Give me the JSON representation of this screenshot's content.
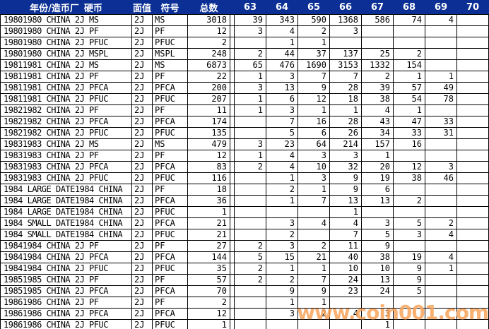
{
  "table": {
    "headers": {
      "year_mint": "年份/造币厂",
      "coin": "硬币",
      "face_value": "面值",
      "symbol": "符号",
      "total": "总数",
      "grades": [
        "63",
        "64",
        "65",
        "66",
        "67",
        "68",
        "69",
        "70"
      ]
    },
    "rows": [
      {
        "coin": "19801980 CHINA 2J MS",
        "face_value": "2J",
        "symbol": "MS",
        "total": "3018",
        "grades": [
          "39",
          "343",
          "590",
          "1368",
          "586",
          "74",
          "4",
          ""
        ]
      },
      {
        "coin": "19801980 CHINA 2J PF",
        "face_value": "2J",
        "symbol": "PF",
        "total": "12",
        "grades": [
          "3",
          "4",
          "2",
          "3",
          "",
          "",
          "",
          ""
        ]
      },
      {
        "coin": "19801980 CHINA 2J PFUC",
        "face_value": "2J",
        "symbol": "PFUC",
        "total": "2",
        "grades": [
          "",
          "1",
          "1",
          "",
          "",
          "",
          "",
          ""
        ]
      },
      {
        "coin": "19801980 CHINA 2J MSPL",
        "face_value": "2J",
        "symbol": "MSPL",
        "total": "248",
        "grades": [
          "2",
          "44",
          "37",
          "137",
          "25",
          "2",
          "",
          ""
        ]
      },
      {
        "coin": "19811981 CHINA 2J MS",
        "face_value": "2J",
        "symbol": "MS",
        "total": "6873",
        "grades": [
          "65",
          "476",
          "1690",
          "3153",
          "1332",
          "154",
          "",
          ""
        ]
      },
      {
        "coin": "19811981 CHINA 2J PF",
        "face_value": "2J",
        "symbol": "PF",
        "total": "22",
        "grades": [
          "1",
          "3",
          "7",
          "7",
          "2",
          "1",
          "1",
          ""
        ]
      },
      {
        "coin": "19811981 CHINA 2J PFCA",
        "face_value": "2J",
        "symbol": "PFCA",
        "total": "200",
        "grades": [
          "3",
          "13",
          "9",
          "28",
          "39",
          "57",
          "49",
          ""
        ]
      },
      {
        "coin": "19811981 CHINA 2J PFUC",
        "face_value": "2J",
        "symbol": "PFUC",
        "total": "207",
        "grades": [
          "1",
          "6",
          "12",
          "18",
          "38",
          "54",
          "78",
          ""
        ]
      },
      {
        "coin": "19821982 CHINA 2J PF",
        "face_value": "2J",
        "symbol": "PF",
        "total": "11",
        "grades": [
          "1",
          "3",
          "1",
          "1",
          "4",
          "1",
          "",
          ""
        ]
      },
      {
        "coin": "19821982 CHINA 2J PFCA",
        "face_value": "2J",
        "symbol": "PFCA",
        "total": "174",
        "grades": [
          "",
          "7",
          "16",
          "28",
          "43",
          "47",
          "33",
          ""
        ]
      },
      {
        "coin": "19821982 CHINA 2J PFUC",
        "face_value": "2J",
        "symbol": "PFUC",
        "total": "135",
        "grades": [
          "",
          "5",
          "6",
          "26",
          "34",
          "33",
          "31",
          ""
        ]
      },
      {
        "coin": "19831983 CHINA 2J MS",
        "face_value": "2J",
        "symbol": "MS",
        "total": "479",
        "grades": [
          "3",
          "23",
          "64",
          "214",
          "157",
          "16",
          "",
          ""
        ]
      },
      {
        "coin": "19831983 CHINA 2J PF",
        "face_value": "2J",
        "symbol": "PF",
        "total": "12",
        "grades": [
          "1",
          "4",
          "3",
          "3",
          "1",
          "",
          "",
          ""
        ]
      },
      {
        "coin": "19831983 CHINA 2J PFCA",
        "face_value": "2J",
        "symbol": "PFCA",
        "total": "83",
        "grades": [
          "2",
          "4",
          "10",
          "32",
          "20",
          "12",
          "3",
          ""
        ]
      },
      {
        "coin": "19831983 CHINA 2J PFUC",
        "face_value": "2J",
        "symbol": "PFUC",
        "total": "116",
        "grades": [
          "",
          "1",
          "3",
          "9",
          "19",
          "38",
          "46",
          ""
        ]
      },
      {
        "coin": "1984 LARGE DATE1984 CHINA",
        "face_value": "2J",
        "symbol": "PF",
        "total": "18",
        "grades": [
          "",
          "2",
          "1",
          "9",
          "6",
          "",
          "",
          ""
        ]
      },
      {
        "coin": "1984 LARGE DATE1984 CHINA",
        "face_value": "2J",
        "symbol": "PFCA",
        "total": "36",
        "grades": [
          "",
          "1",
          "7",
          "13",
          "13",
          "2",
          "",
          ""
        ]
      },
      {
        "coin": "1984 LARGE DATE1984 CHINA",
        "face_value": "2J",
        "symbol": "PFUC",
        "total": "1",
        "grades": [
          "",
          "",
          "",
          "1",
          "",
          "",
          "",
          ""
        ]
      },
      {
        "coin": "1984 SMALL DATE1984 CHINA",
        "face_value": "2J",
        "symbol": "PFCA",
        "total": "21",
        "grades": [
          "",
          "3",
          "4",
          "4",
          "3",
          "5",
          "2",
          ""
        ]
      },
      {
        "coin": "1984 SMALL DATE1984 CHINA",
        "face_value": "2J",
        "symbol": "PFUC",
        "total": "21",
        "grades": [
          "",
          "2",
          "",
          "7",
          "5",
          "3",
          "4",
          ""
        ]
      },
      {
        "coin": "19841984 CHINA 2J PF",
        "face_value": "2J",
        "symbol": "PF",
        "total": "27",
        "grades": [
          "2",
          "3",
          "2",
          "11",
          "9",
          "",
          "",
          ""
        ]
      },
      {
        "coin": "19841984 CHINA 2J PFCA",
        "face_value": "2J",
        "symbol": "PFCA",
        "total": "144",
        "grades": [
          "5",
          "15",
          "21",
          "40",
          "38",
          "19",
          "4",
          ""
        ]
      },
      {
        "coin": "19841984 CHINA 2J PFUC",
        "face_value": "2J",
        "symbol": "PFUC",
        "total": "35",
        "grades": [
          "2",
          "1",
          "1",
          "10",
          "10",
          "9",
          "1",
          ""
        ]
      },
      {
        "coin": "19851985 CHINA 2J PF",
        "face_value": "2J",
        "symbol": "PF",
        "total": "57",
        "grades": [
          "2",
          "2",
          "7",
          "24",
          "13",
          "9",
          "",
          ""
        ]
      },
      {
        "coin": "19851985 CHINA 2J PFCA",
        "face_value": "2J",
        "symbol": "PFCA",
        "total": "70",
        "grades": [
          "",
          "9",
          "9",
          "23",
          "24",
          "5",
          "",
          ""
        ]
      },
      {
        "coin": "19861986 CHINA 2J PF",
        "face_value": "2J",
        "symbol": "PF",
        "total": "2",
        "grades": [
          "",
          "1",
          "1",
          "",
          "",
          "",
          "",
          ""
        ]
      },
      {
        "coin": "19861986 CHINA 2J PFCA",
        "face_value": "2J",
        "symbol": "PFCA",
        "total": "12",
        "grades": [
          "",
          "3",
          "2",
          "4",
          "3",
          "",
          "",
          ""
        ]
      },
      {
        "coin": "19861986 CHINA 2J PFUC",
        "face_value": "2J",
        "symbol": "PFUC",
        "total": "1",
        "grades": [
          "",
          "",
          "",
          "",
          "1",
          "",
          "",
          ""
        ]
      }
    ]
  },
  "watermark": {
    "text": "www.coin001.com"
  },
  "colors": {
    "header_bg": "#0B2F94",
    "header_text": "#FFFFFF",
    "grid": "#000000",
    "watermark_orange": "#F8A35A"
  }
}
